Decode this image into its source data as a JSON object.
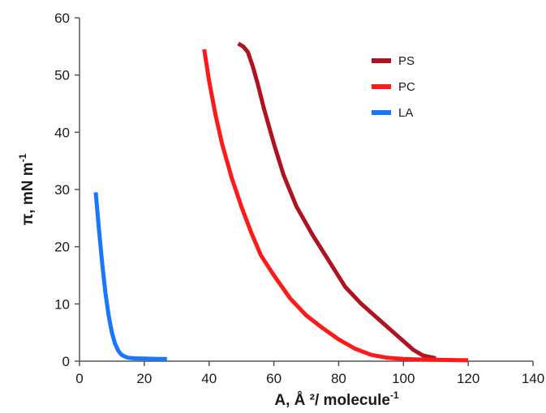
{
  "chart_data": {
    "type": "line",
    "title": "",
    "xlabel": "A,  Å ²/ molecule",
    "xlabel_sup": "-1",
    "ylabel": "π, mN m",
    "ylabel_sup": "-1",
    "xlim": [
      0,
      140
    ],
    "ylim": [
      0,
      60
    ],
    "x_ticks": [
      0,
      20,
      40,
      60,
      80,
      100,
      120,
      140
    ],
    "y_ticks": [
      0,
      10,
      20,
      30,
      40,
      50,
      60
    ],
    "grid": false,
    "legend_position": "top-right",
    "series": [
      {
        "name": "PS",
        "color": "#b0121f",
        "x": [
          49,
          50.5,
          52,
          53.5,
          55,
          57,
          60,
          63,
          67,
          72,
          77,
          82,
          87,
          93,
          99,
          103,
          106,
          110
        ],
        "y": [
          55.5,
          55,
          54,
          51.5,
          48.5,
          44,
          38,
          32.5,
          27,
          22,
          17.5,
          13,
          10,
          7,
          4,
          2,
          1,
          0.5
        ]
      },
      {
        "name": "PC",
        "color": "#ff1a1a",
        "x": [
          38.5,
          40,
          42,
          44,
          47,
          50,
          53,
          56,
          60,
          65,
          70,
          75,
          80,
          85,
          90,
          95,
          100,
          105,
          110,
          115,
          120
        ],
        "y": [
          54.5,
          49,
          43,
          38,
          32,
          27,
          22.5,
          18.5,
          15,
          11,
          8,
          5.8,
          3.8,
          2.2,
          1.1,
          0.6,
          0.4,
          0.3,
          0.25,
          0.2,
          0.15
        ]
      },
      {
        "name": "LA",
        "color": "#1a75ff",
        "x": [
          5,
          6,
          7,
          8,
          9,
          10,
          11,
          12,
          13,
          14,
          15,
          17,
          20,
          24,
          27
        ],
        "y": [
          29.5,
          23,
          17,
          12,
          8,
          5,
          3,
          1.8,
          1.1,
          0.8,
          0.6,
          0.5,
          0.45,
          0.4,
          0.4
        ]
      }
    ]
  }
}
